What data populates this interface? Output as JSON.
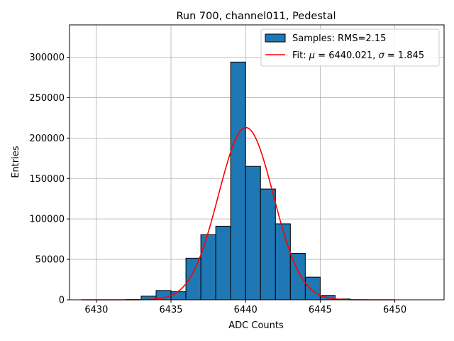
{
  "chart_data": {
    "type": "bar",
    "title": "Run 700, channel011, Pedestal",
    "xlabel": "ADC Counts",
    "ylabel": "Entries",
    "xlim": [
      6428.2,
      6453.3
    ],
    "ylim": [
      0,
      340000
    ],
    "x_ticks": [
      6430,
      6435,
      6440,
      6445,
      6450
    ],
    "x_tick_labels": [
      "6430",
      "6435",
      "6440",
      "6445",
      "6450"
    ],
    "y_ticks": [
      0,
      50000,
      100000,
      150000,
      200000,
      250000,
      300000
    ],
    "y_tick_labels": [
      "0",
      "50000",
      "100000",
      "150000",
      "200000",
      "250000",
      "300000"
    ],
    "grid": true,
    "legend_position": "top-right",
    "colors": {
      "bars": "#1f77b4",
      "bar_edge": "#000000",
      "fit": "#ff0000",
      "grid": "#b0b0b0"
    },
    "histogram": {
      "name": "Samples: RMS=2.15",
      "bin_width": 1,
      "bin_left_edges": [
        6429,
        6430,
        6431,
        6432,
        6433,
        6434,
        6435,
        6436,
        6437,
        6438,
        6439,
        6440,
        6441,
        6442,
        6443,
        6444,
        6445,
        6446,
        6447,
        6448,
        6449,
        6450,
        6451
      ],
      "counts": [
        0,
        0,
        0,
        500,
        4500,
        11500,
        10000,
        51500,
        80500,
        91000,
        294000,
        165000,
        137000,
        94000,
        57500,
        28000,
        5500,
        1000,
        0,
        0,
        0,
        0,
        0
      ]
    },
    "fit": {
      "name_parts": [
        "Fit: ",
        "μ",
        " = 6440.021, ",
        "σ",
        " = 1.845"
      ],
      "mu": 6440.021,
      "sigma": 1.845,
      "amplitude": 213000,
      "x_range": [
        6429,
        6450
      ]
    }
  }
}
